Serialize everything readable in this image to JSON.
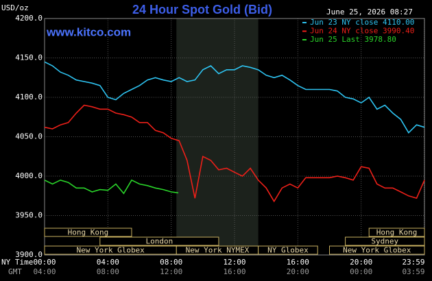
{
  "chart_data": {
    "type": "line",
    "title": "24 Hour Spot Gold (Bid)",
    "subtitle": "www.kitco.com",
    "timestamp": "June 25, 2026 08:27",
    "y_label": "USD/oz",
    "x_label": "NY Time",
    "x2_label": "GMT",
    "xlim": [
      0,
      24
    ],
    "ylim": [
      3900,
      4200
    ],
    "yticks": [
      {
        "value": 3900,
        "label": "3900.0"
      },
      {
        "value": 3950,
        "label": "3950.0"
      },
      {
        "value": 4000,
        "label": "4000.0"
      },
      {
        "value": 4050,
        "label": "4050.0"
      },
      {
        "value": 4100,
        "label": "4100.0"
      },
      {
        "value": 4150,
        "label": "4150.0"
      },
      {
        "value": 4200,
        "label": "4200.0"
      }
    ],
    "xticks": [
      {
        "value": 0,
        "label": "00:00"
      },
      {
        "value": 4,
        "label": "04:00"
      },
      {
        "value": 8,
        "label": "08:00"
      },
      {
        "value": 12,
        "label": "12:00"
      },
      {
        "value": 16,
        "label": "16:00"
      },
      {
        "value": 20,
        "label": "20:00"
      },
      {
        "value": 23.98,
        "label": "23:59"
      }
    ],
    "x2_tick_labels": [
      "04:00",
      "08:00",
      "12:00",
      "16:00",
      "20:00",
      "00:00",
      "03:59"
    ],
    "grid": true,
    "shade": [
      8.33,
      13.5
    ],
    "sessions": [
      [
        {
          "label": "Hong Kong",
          "start": 0,
          "end": 5.5
        },
        {
          "label": "Hong Kong",
          "start": 20.5,
          "end": 24
        }
      ],
      [
        {
          "label": "London",
          "start": 3.5,
          "end": 11
        },
        {
          "label": "Sydney",
          "start": 19,
          "end": 24
        }
      ],
      [
        {
          "label": "New York Globex",
          "start": 0,
          "end": 8.33
        },
        {
          "label": "New York NYMEX",
          "start": 8.33,
          "end": 13.5
        },
        {
          "label": "NY Globex",
          "start": 13.5,
          "end": 17.25
        },
        {
          "label": "New York Globex",
          "start": 18,
          "end": 24
        }
      ]
    ],
    "x": [
      0,
      0.5,
      1,
      1.5,
      2,
      2.5,
      3,
      3.5,
      4,
      4.5,
      5,
      5.5,
      6,
      6.5,
      7,
      7.5,
      8,
      8.5,
      9,
      9.5,
      10,
      10.5,
      11,
      11.5,
      12,
      12.5,
      13,
      13.5,
      14,
      14.5,
      15,
      15.5,
      16,
      16.5,
      17,
      17.5,
      18,
      18.5,
      19,
      19.5,
      20,
      20.5,
      21,
      21.5,
      22,
      22.5,
      23,
      23.5,
      24
    ],
    "series": [
      {
        "name": "Jun 23 NY close 4110.00",
        "color": "#2ec4f2",
        "values": [
          4145,
          4140,
          4132,
          4128,
          4122,
          4120,
          4118,
          4115,
          4100,
          4097,
          4105,
          4110,
          4115,
          4122,
          4125,
          4122,
          4120,
          4125,
          4120,
          4122,
          4135,
          4140,
          4130,
          4135,
          4135,
          4140,
          4138,
          4135,
          4128,
          4125,
          4128,
          4122,
          4115,
          4110,
          4110,
          4110,
          4110,
          4108,
          4100,
          4098,
          4093,
          4100,
          4085,
          4090,
          4080,
          4072,
          4055,
          4065,
          4062
        ]
      },
      {
        "name": "Jun 24 NY close 3990.40",
        "color": "#ee2019",
        "values": [
          4062,
          4060,
          4065,
          4068,
          4080,
          4090,
          4088,
          4085,
          4085,
          4080,
          4078,
          4075,
          4068,
          4068,
          4058,
          4055,
          4048,
          4045,
          4020,
          3972,
          4025,
          4020,
          4008,
          4010,
          4005,
          4000,
          4010,
          3995,
          3985,
          3968,
          3985,
          3990,
          3985,
          3998,
          3998,
          3998,
          3998,
          4000,
          3998,
          3995,
          4012,
          4010,
          3990,
          3985,
          3985,
          3980,
          3975,
          3972,
          3995
        ]
      },
      {
        "name": "Jun 25 Last 3978.80",
        "color": "#2ad62a",
        "x": [
          0,
          0.5,
          1,
          1.5,
          2,
          2.5,
          3,
          3.5,
          4,
          4.5,
          5,
          5.5,
          6,
          6.5,
          7,
          7.5,
          8,
          8.45
        ],
        "values": [
          3995,
          3990,
          3995,
          3992,
          3985,
          3985,
          3980,
          3983,
          3982,
          3990,
          3978,
          3995,
          3990,
          3988,
          3985,
          3983,
          3980,
          3978.8
        ]
      }
    ]
  }
}
